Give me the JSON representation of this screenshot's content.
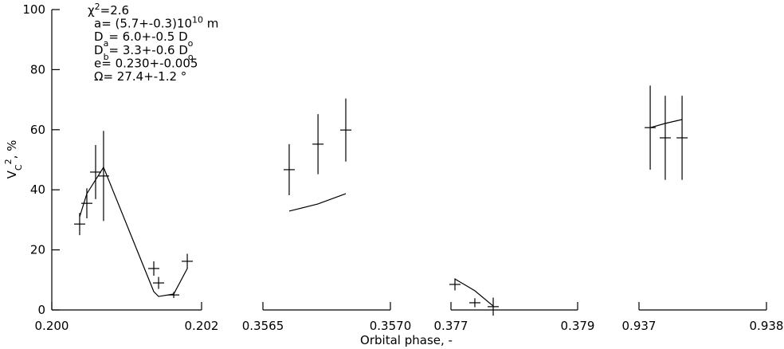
{
  "chart_data": {
    "type": "errorbar",
    "x_label": "Orbital phase, -",
    "y_label": [
      {
        "text": "V"
      },
      {
        "text": "C",
        "shift": "sub"
      },
      {
        "text": "2",
        "shift": "super"
      },
      {
        "text": ", %"
      }
    ],
    "ylim": [
      0,
      100
    ],
    "yticks": [
      0,
      20,
      40,
      60,
      80,
      100
    ],
    "color": "#000000",
    "annotations": [
      [
        {
          "text": "χ"
        },
        {
          "text": "2",
          "shift": "super"
        },
        {
          "text": "=2.6"
        }
      ],
      [
        {
          "text": "a= (5.7+-0.3)10"
        },
        {
          "text": "10",
          "shift": "super"
        },
        {
          "text": " m"
        }
      ],
      [
        {
          "text": "D"
        },
        {
          "text": "a",
          "shift": "sub"
        },
        {
          "text": "= 6.0+-0.5 D"
        },
        {
          "text": "o",
          "shift": "sub"
        }
      ],
      [
        {
          "text": "D"
        },
        {
          "text": "b",
          "shift": "sub"
        },
        {
          "text": "= 3.3+-0.6 D"
        },
        {
          "text": "o",
          "shift": "sub"
        }
      ],
      [
        {
          "text": "e= 0.230+-0.005"
        }
      ],
      [
        {
          "text": "Ω= 27.4+-1.2 °"
        }
      ]
    ],
    "panels": [
      {
        "xlim": [
          0.2,
          0.202
        ],
        "xticks": [
          {
            "value": 0.2,
            "label": "0.200"
          },
          {
            "value": 0.202,
            "label": "0.202"
          }
        ],
        "x": [
          0.200372,
          0.200468,
          0.200585,
          0.200691,
          0.201362,
          0.201426,
          0.201628,
          0.201809
        ],
        "values": [
          28.6,
          35.5,
          45.9,
          44.6,
          13.8,
          9.0,
          5.0,
          16.2
        ],
        "errors": [
          3.7,
          5.0,
          9.0,
          15.0,
          2.4,
          2.0,
          1.0,
          2.5
        ],
        "model": [
          31.0,
          38.7,
          null,
          47.5,
          6.1,
          4.5,
          5.3,
          13.8
        ]
      },
      {
        "xlim": [
          0.3565,
          0.357
        ],
        "xticks": [
          {
            "value": 0.3565,
            "label": "0.3565"
          },
          {
            "value": 0.357,
            "label": "0.3570"
          }
        ],
        "x": [
          0.356603,
          0.356716,
          0.356825
        ],
        "values": [
          46.7,
          55.2,
          59.9
        ],
        "errors": [
          8.5,
          10.0,
          10.5
        ],
        "model": [
          32.9,
          35.3,
          38.7
        ]
      },
      {
        "xlim": [
          0.377,
          0.379
        ],
        "xticks": [
          0.377,
          0.379
        ],
        "x": [
          0.377063,
          0.377377,
          0.377667
        ],
        "values": [
          8.5,
          2.4,
          1.1
        ],
        "errors": [
          2.0,
          1.5,
          3.0
        ],
        "model": [
          10.3,
          6.4,
          1.3
        ]
      },
      {
        "xlim": [
          0.937,
          0.938
        ],
        "xticks": [
          0.937,
          0.938
        ],
        "x": [
          0.937088,
          0.937206,
          0.937338
        ],
        "values": [
          60.7,
          57.3,
          57.3
        ],
        "errors": [
          14.0,
          14.0,
          14.0
        ],
        "model": [
          60.7,
          62.1,
          63.4
        ]
      }
    ]
  }
}
